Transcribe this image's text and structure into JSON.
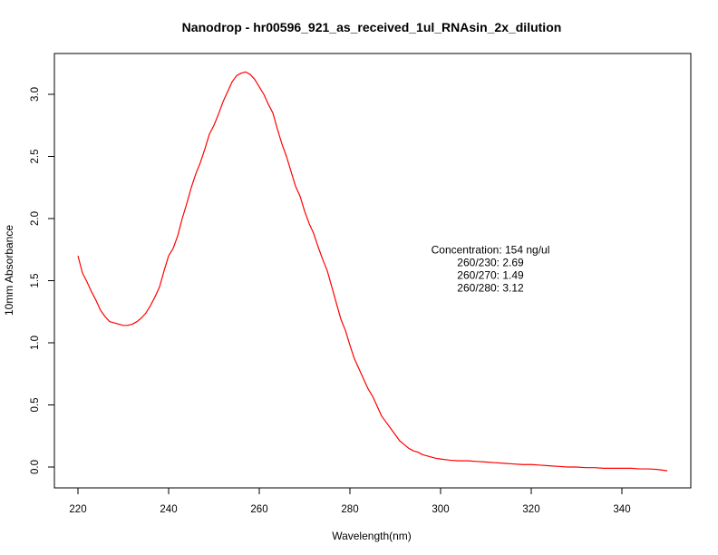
{
  "chart_data": {
    "type": "line",
    "title": "Nanodrop - hr00596_921_as_received_1ul_RNAsin_2x_dilution",
    "xlabel": "Wavelength(nm)",
    "ylabel": "10mm Absorbance",
    "xlim": [
      220,
      350
    ],
    "ylim": [
      -0.15,
      3.3
    ],
    "x_ticks": [
      220,
      240,
      260,
      280,
      300,
      320,
      340
    ],
    "y_ticks": [
      0.0,
      0.5,
      1.0,
      1.5,
      2.0,
      2.5,
      3.0
    ],
    "x_tick_labels": [
      "220",
      "240",
      "260",
      "280",
      "300",
      "320",
      "340"
    ],
    "y_tick_labels": [
      "0.0",
      "0.5",
      "1.0",
      "1.5",
      "2.0",
      "2.5",
      "3.0"
    ],
    "grid": false,
    "line_color": "#ff0000",
    "series": [
      {
        "x": [
          220,
          221,
          222,
          223,
          224,
          225,
          226,
          227,
          228,
          229,
          230,
          231,
          232,
          233,
          234,
          235,
          236,
          237,
          238,
          239,
          240,
          241,
          242,
          243,
          244,
          245,
          246,
          247,
          248,
          249,
          250,
          251,
          252,
          253,
          254,
          255,
          256,
          257,
          258,
          259,
          260,
          261,
          262,
          263,
          264,
          265,
          266,
          267,
          268,
          269,
          270,
          271,
          272,
          273,
          274,
          275,
          276,
          277,
          278,
          279,
          280,
          281,
          282,
          283,
          284,
          285,
          286,
          287,
          288,
          289,
          290,
          291,
          292,
          293,
          294,
          295,
          296,
          297,
          298,
          299,
          300,
          302,
          304,
          306,
          308,
          310,
          312,
          314,
          316,
          318,
          320,
          322,
          324,
          326,
          328,
          330,
          332,
          334,
          336,
          338,
          340,
          342,
          344,
          346,
          348,
          350
        ],
        "y": [
          1.7,
          1.56,
          1.49,
          1.41,
          1.34,
          1.26,
          1.21,
          1.17,
          1.16,
          1.15,
          1.14,
          1.14,
          1.15,
          1.17,
          1.2,
          1.24,
          1.3,
          1.37,
          1.45,
          1.58,
          1.7,
          1.76,
          1.86,
          2.0,
          2.12,
          2.25,
          2.36,
          2.45,
          2.56,
          2.68,
          2.75,
          2.84,
          2.94,
          3.02,
          3.1,
          3.15,
          3.17,
          3.18,
          3.16,
          3.12,
          3.06,
          3.0,
          2.92,
          2.85,
          2.72,
          2.6,
          2.5,
          2.38,
          2.26,
          2.18,
          2.06,
          1.96,
          1.88,
          1.77,
          1.67,
          1.58,
          1.45,
          1.32,
          1.19,
          1.1,
          0.98,
          0.87,
          0.79,
          0.71,
          0.63,
          0.57,
          0.49,
          0.41,
          0.36,
          0.31,
          0.26,
          0.21,
          0.18,
          0.15,
          0.13,
          0.12,
          0.1,
          0.09,
          0.08,
          0.07,
          0.065,
          0.055,
          0.05,
          0.05,
          0.045,
          0.04,
          0.035,
          0.03,
          0.025,
          0.02,
          0.02,
          0.015,
          0.01,
          0.005,
          0.0,
          0.0,
          -0.005,
          -0.005,
          -0.01,
          -0.01,
          -0.01,
          -0.01,
          -0.015,
          -0.015,
          -0.02,
          -0.03
        ]
      }
    ],
    "annotation": {
      "lines": [
        "Concentration: 154 ng/ul",
        "260/230: 2.69",
        "260/270: 1.49",
        "260/280: 3.12"
      ],
      "anchor_x": 311,
      "anchor_y": 1.72
    }
  }
}
